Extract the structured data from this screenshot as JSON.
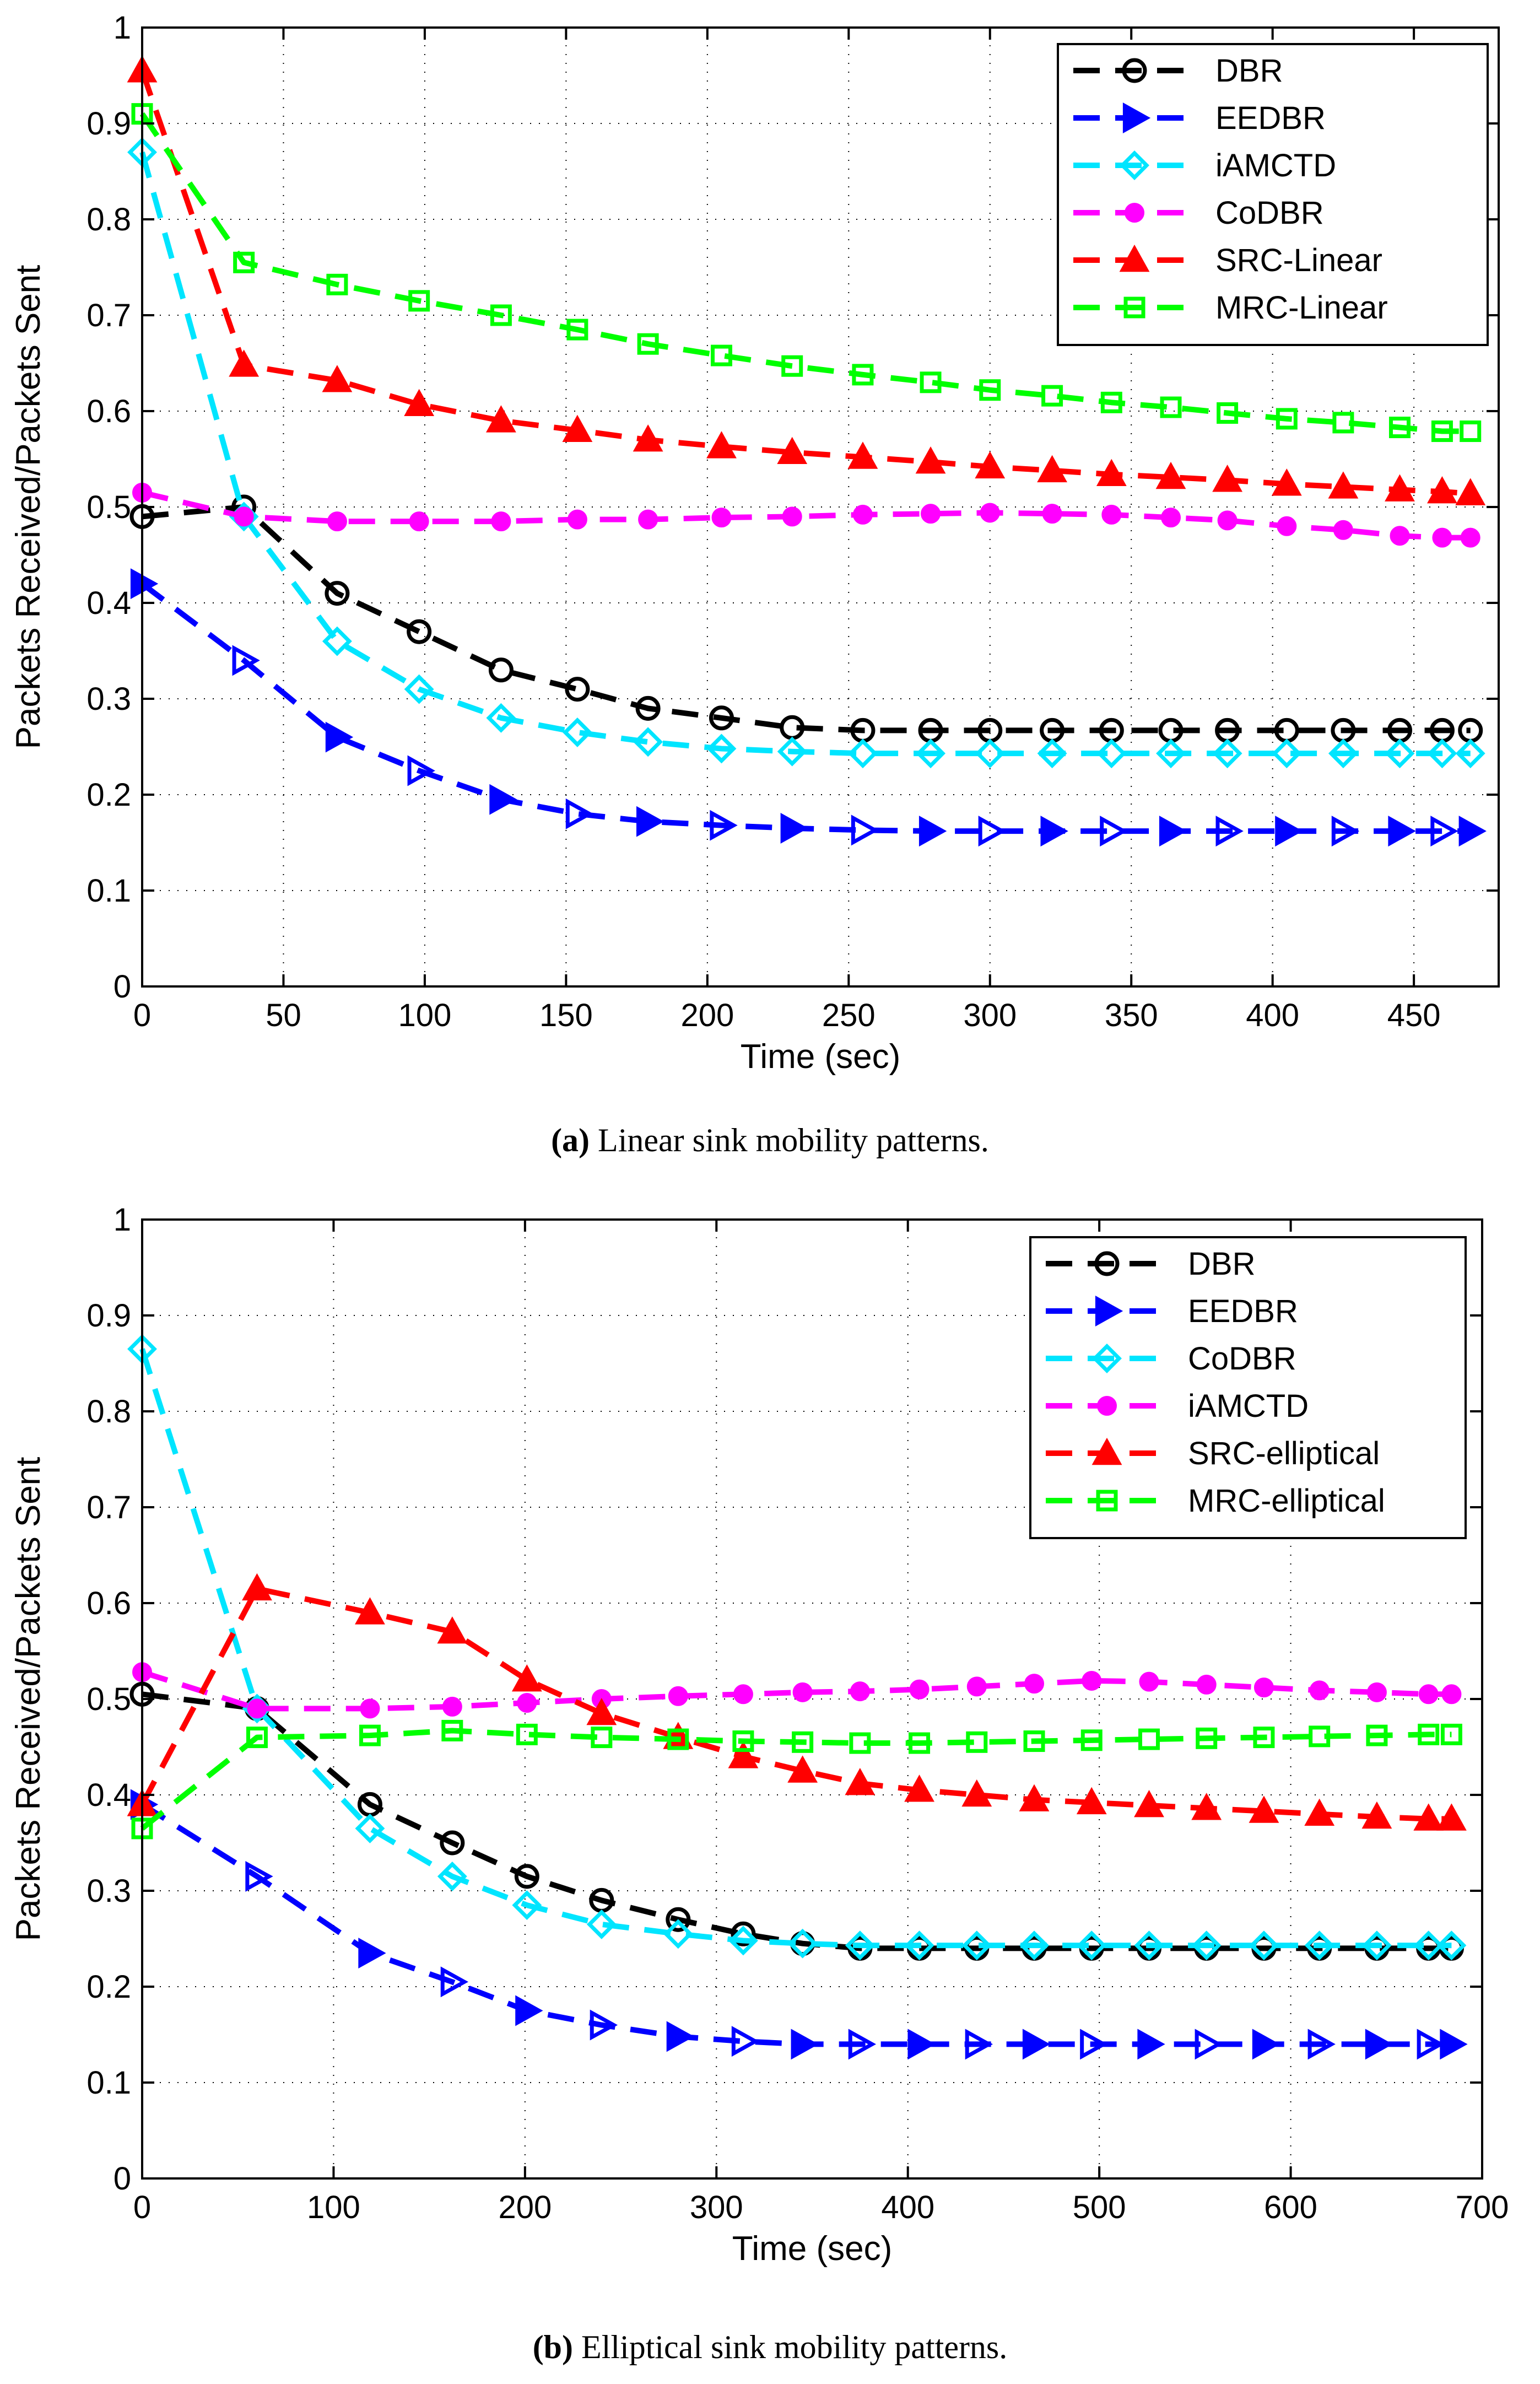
{
  "chart_data": [
    {
      "type": "line",
      "caption": {
        "letter": "(a)",
        "text": " Linear sink mobility patterns."
      },
      "xlabel": "Time (sec)",
      "ylabel": "Packets Received/Packets Sent",
      "xlim": [
        0,
        480
      ],
      "ylim": [
        0,
        1
      ],
      "xticks": [
        0,
        50,
        100,
        150,
        200,
        250,
        300,
        350,
        400,
        450
      ],
      "yticks": [
        0,
        0.1,
        0.2,
        0.3,
        0.4,
        0.5,
        0.6,
        0.7,
        0.8,
        0.9,
        1
      ],
      "grid": true,
      "legend_position": "top-right",
      "series": [
        {
          "name": "DBR",
          "color": "#000000",
          "marker": "circle",
          "x": [
            0,
            36,
            69,
            98,
            127,
            154,
            179,
            205,
            230,
            255,
            279,
            300,
            322,
            343,
            364,
            384,
            405,
            425,
            445,
            460,
            470
          ],
          "y": [
            0.49,
            0.5,
            0.41,
            0.37,
            0.33,
            0.31,
            0.29,
            0.28,
            0.27,
            0.267,
            0.267,
            0.267,
            0.267,
            0.267,
            0.267,
            0.267,
            0.267,
            0.267,
            0.267,
            0.267,
            0.267
          ]
        },
        {
          "name": "EEDBR",
          "color": "#0000ff",
          "marker": "triangle-right",
          "x": [
            0,
            36,
            69,
            98,
            127,
            154,
            179,
            205,
            230,
            255,
            279,
            300,
            322,
            343,
            364,
            384,
            405,
            425,
            445,
            460,
            470
          ],
          "y": [
            0.42,
            0.34,
            0.26,
            0.225,
            0.195,
            0.18,
            0.172,
            0.168,
            0.165,
            0.163,
            0.162,
            0.162,
            0.162,
            0.162,
            0.162,
            0.162,
            0.162,
            0.162,
            0.162,
            0.162,
            0.162
          ]
        },
        {
          "name": "iAMCTD",
          "color": "#00e5ff",
          "marker": "diamond",
          "x": [
            0,
            36,
            69,
            98,
            127,
            154,
            179,
            205,
            230,
            255,
            279,
            300,
            322,
            343,
            364,
            384,
            405,
            425,
            445,
            460,
            470
          ],
          "y": [
            0.87,
            0.49,
            0.36,
            0.31,
            0.28,
            0.265,
            0.255,
            0.248,
            0.245,
            0.243,
            0.243,
            0.243,
            0.243,
            0.243,
            0.243,
            0.243,
            0.243,
            0.243,
            0.243,
            0.243,
            0.243
          ]
        },
        {
          "name": "CoDBR",
          "color": "#ff00ff",
          "marker": "dot",
          "x": [
            0,
            36,
            69,
            98,
            127,
            154,
            179,
            205,
            230,
            255,
            279,
            300,
            322,
            343,
            364,
            384,
            405,
            425,
            445,
            460,
            470
          ],
          "y": [
            0.515,
            0.49,
            0.485,
            0.485,
            0.485,
            0.487,
            0.487,
            0.489,
            0.49,
            0.492,
            0.493,
            0.494,
            0.493,
            0.492,
            0.489,
            0.486,
            0.48,
            0.476,
            0.47,
            0.468,
            0.468
          ]
        },
        {
          "name": "SRC-Linear",
          "color": "#ff0000",
          "marker": "triangle-up",
          "x": [
            0,
            36,
            69,
            98,
            127,
            154,
            179,
            205,
            230,
            255,
            279,
            300,
            322,
            343,
            364,
            384,
            405,
            425,
            445,
            460,
            470
          ],
          "y": [
            0.955,
            0.648,
            0.632,
            0.607,
            0.59,
            0.58,
            0.57,
            0.563,
            0.557,
            0.552,
            0.547,
            0.542,
            0.538,
            0.534,
            0.531,
            0.528,
            0.524,
            0.521,
            0.518,
            0.516,
            0.514
          ]
        },
        {
          "name": "MRC-Linear",
          "color": "#00ff00",
          "marker": "square",
          "x": [
            0,
            36,
            69,
            98,
            127,
            154,
            179,
            205,
            230,
            255,
            279,
            300,
            322,
            343,
            364,
            384,
            405,
            425,
            445,
            460,
            470
          ],
          "y": [
            0.91,
            0.755,
            0.732,
            0.715,
            0.7,
            0.685,
            0.67,
            0.658,
            0.647,
            0.638,
            0.63,
            0.622,
            0.616,
            0.609,
            0.604,
            0.598,
            0.592,
            0.588,
            0.583,
            0.579,
            0.579
          ]
        }
      ]
    },
    {
      "type": "line",
      "caption": {
        "letter": "(b)",
        "text": " Elliptical sink mobility patterns."
      },
      "xlabel": "Time (sec)",
      "ylabel": "Packets Received/Packets Sent",
      "xlim": [
        0,
        700
      ],
      "ylim": [
        0,
        1
      ],
      "xticks": [
        0,
        100,
        200,
        300,
        400,
        500,
        600,
        700
      ],
      "yticks": [
        0,
        0.1,
        0.2,
        0.3,
        0.4,
        0.5,
        0.6,
        0.7,
        0.8,
        0.9,
        1
      ],
      "grid": true,
      "legend_position": "top-right",
      "series": [
        {
          "name": "DBR",
          "color": "#000000",
          "marker": "circle",
          "x": [
            0,
            60,
            119,
            162,
            201,
            240,
            280,
            314,
            345,
            375,
            406,
            436,
            466,
            496,
            526,
            556,
            586,
            615,
            645,
            672,
            684
          ],
          "y": [
            0.505,
            0.49,
            0.39,
            0.35,
            0.315,
            0.29,
            0.27,
            0.255,
            0.245,
            0.24,
            0.24,
            0.24,
            0.24,
            0.24,
            0.24,
            0.24,
            0.24,
            0.24,
            0.24,
            0.24,
            0.24
          ]
        },
        {
          "name": "EEDBR",
          "color": "#0000ff",
          "marker": "triangle-right",
          "x": [
            0,
            60,
            119,
            162,
            201,
            240,
            280,
            314,
            345,
            375,
            406,
            436,
            466,
            496,
            526,
            556,
            586,
            615,
            645,
            672,
            684
          ],
          "y": [
            0.39,
            0.315,
            0.235,
            0.205,
            0.175,
            0.16,
            0.148,
            0.143,
            0.14,
            0.14,
            0.14,
            0.14,
            0.14,
            0.14,
            0.14,
            0.14,
            0.14,
            0.14,
            0.14,
            0.14,
            0.14
          ]
        },
        {
          "name": "CoDBR",
          "color": "#00e5ff",
          "marker": "diamond",
          "x": [
            0,
            60,
            119,
            162,
            201,
            240,
            280,
            314,
            345,
            375,
            406,
            436,
            466,
            496,
            526,
            556,
            586,
            615,
            645,
            672,
            684
          ],
          "y": [
            0.865,
            0.49,
            0.365,
            0.315,
            0.285,
            0.265,
            0.255,
            0.248,
            0.245,
            0.243,
            0.243,
            0.243,
            0.243,
            0.243,
            0.243,
            0.243,
            0.243,
            0.243,
            0.243,
            0.243,
            0.243
          ]
        },
        {
          "name": "iAMCTD",
          "color": "#ff00ff",
          "marker": "dot",
          "x": [
            0,
            60,
            119,
            162,
            201,
            240,
            280,
            314,
            345,
            375,
            406,
            436,
            466,
            496,
            526,
            556,
            586,
            615,
            645,
            672,
            684
          ],
          "y": [
            0.528,
            0.49,
            0.49,
            0.492,
            0.496,
            0.5,
            0.503,
            0.505,
            0.507,
            0.508,
            0.51,
            0.513,
            0.516,
            0.519,
            0.518,
            0.515,
            0.512,
            0.509,
            0.507,
            0.505,
            0.505
          ]
        },
        {
          "name": "SRC-elliptical",
          "color": "#ff0000",
          "marker": "triangle-up",
          "x": [
            0,
            60,
            119,
            162,
            201,
            240,
            280,
            314,
            345,
            375,
            406,
            436,
            466,
            496,
            526,
            556,
            586,
            615,
            645,
            672,
            684
          ],
          "y": [
            0.39,
            0.615,
            0.59,
            0.57,
            0.52,
            0.485,
            0.46,
            0.44,
            0.425,
            0.412,
            0.405,
            0.4,
            0.395,
            0.392,
            0.389,
            0.386,
            0.383,
            0.38,
            0.377,
            0.375,
            0.375
          ]
        },
        {
          "name": "MRC-elliptical",
          "color": "#00ff00",
          "marker": "square",
          "x": [
            0,
            60,
            119,
            162,
            201,
            240,
            280,
            314,
            345,
            375,
            406,
            436,
            466,
            496,
            526,
            556,
            586,
            615,
            645,
            672,
            684
          ],
          "y": [
            0.365,
            0.46,
            0.462,
            0.467,
            0.463,
            0.46,
            0.458,
            0.456,
            0.455,
            0.454,
            0.454,
            0.455,
            0.456,
            0.457,
            0.458,
            0.459,
            0.46,
            0.461,
            0.462,
            0.463,
            0.463
          ]
        }
      ]
    }
  ]
}
